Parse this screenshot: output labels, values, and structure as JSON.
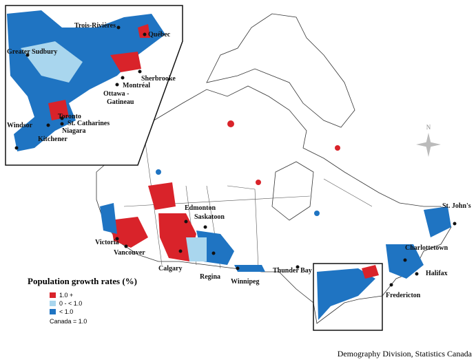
{
  "legend_title": "Population growth rates (%)",
  "legend": [
    {
      "label": "1.0  +",
      "color": "#d9232a"
    },
    {
      "label": "0 -   < 1.0",
      "color": "#a9d6ee"
    },
    {
      "label": "< 1.0",
      "color": "#1f74c2"
    }
  ],
  "note": "Canada = 1.0",
  "source": "Demography Division, Statistics Canada",
  "compass": "N",
  "cities": [
    "Edmonton",
    "Saskatoon",
    "Victoria",
    "Vancouver",
    "Calgary",
    "Regina",
    "Winnipeg",
    "Thunder Bay",
    "St. John's",
    "Charlottetown",
    "Halifax",
    "Fredericton"
  ],
  "inset_cities": [
    "Trois-Rivières",
    "Québec",
    "Greater Sudbury",
    "Sherbrooke",
    "Montréal",
    "Ottawa -",
    "Gatineau",
    "Toronto",
    "St. Catharines",
    "Niagara",
    "Windsor",
    "Kitchener"
  ]
}
